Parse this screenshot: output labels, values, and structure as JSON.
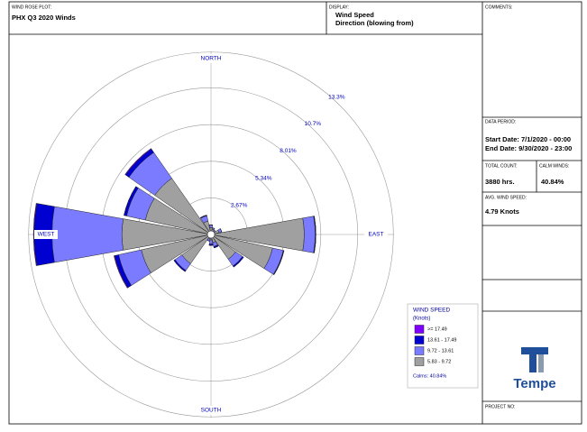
{
  "header": {
    "plot_label": "WIND ROSE PLOT:",
    "plot_title": "PHX Q3 2020 Winds",
    "display_label": "DISPLAY:",
    "display_line1": "Wind Speed",
    "display_line2": "Direction (blowing from)"
  },
  "panel": {
    "comments_label": "COMMENTS:",
    "period_label": "DATA PERIOD:",
    "start_date": "Start Date: 7/1/2020 - 00:00",
    "end_date": "End Date: 9/30/2020 - 23:00",
    "count_label": "TOTAL COUNT:",
    "count_value": "3880 hrs.",
    "calm_label": "CALM WINDS:",
    "calm_value": "40.84%",
    "avg_label": "AVG. WIND SPEED:",
    "avg_value": "4.79 Knots",
    "logo_text": "Tempe",
    "project_label": "PROJECT NO:"
  },
  "chart_data": {
    "type": "windrose",
    "compass": {
      "north": "NORTH",
      "east": "EAST",
      "south": "SOUTH",
      "west": "WEST"
    },
    "rlim": [
      0,
      13.35
    ],
    "rticks": [
      {
        "value": 2.67,
        "label": "2.67%"
      },
      {
        "value": 5.34,
        "label": "5.34%"
      },
      {
        "value": 8.01,
        "label": "8.01%"
      },
      {
        "value": 10.7,
        "label": "10.7%"
      },
      {
        "value": 13.3,
        "label": "13.3%"
      }
    ],
    "legend_title": "WIND SPEED",
    "legend_subtitle": "(Knots)",
    "calms_label": "Calms: 40.84%",
    "series": [
      {
        "name": "5.83 - 9.72",
        "color": "#a0a0a0",
        "values": [
          0.5,
          0.4,
          0.3,
          0.6,
          6.8,
          4.6,
          2.2,
          0.6,
          0.4,
          0.3,
          2.6,
          5.2,
          6.5,
          4.9,
          5.0,
          1.0
        ]
      },
      {
        "name": "9.72 - 13.61",
        "color": "#7b7bff",
        "values": [
          0.2,
          0.1,
          0.1,
          0.2,
          0.8,
          0.8,
          0.6,
          0.3,
          0.3,
          0.2,
          0.6,
          1.7,
          5.1,
          1.4,
          2.3,
          0.4
        ]
      },
      {
        "name": "13.61 - 17.49",
        "color": "#0000d0",
        "values": [
          0,
          0,
          0,
          0,
          0.05,
          0.05,
          0.1,
          0.1,
          0.1,
          0,
          0.1,
          0.3,
          1.3,
          0.2,
          0.3,
          0.05
        ]
      },
      {
        "name": ">= 17.49",
        "color": "#8000ff",
        "values": [
          0,
          0,
          0,
          0,
          0,
          0,
          0,
          0,
          0,
          0,
          0,
          0.05,
          0.05,
          0,
          0.05,
          0
        ]
      }
    ]
  }
}
